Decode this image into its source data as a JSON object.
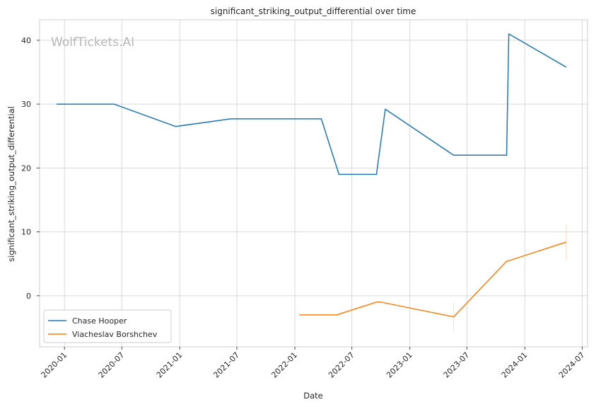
{
  "chart_data": {
    "type": "line",
    "title": "significant_striking_output_differential over time",
    "xlabel": "Date",
    "ylabel": "significant_striking_output_differential",
    "watermark": "WolfTickets.AI",
    "grid": true,
    "legend_position": "lower-left",
    "x_ticks": [
      "2020-01",
      "2020-07",
      "2021-01",
      "2021-07",
      "2022-01",
      "2022-07",
      "2023-01",
      "2023-07",
      "2024-01",
      "2024-07"
    ],
    "y_ticks": [
      0,
      10,
      20,
      30,
      40
    ],
    "xlim": [
      "2019-10-14",
      "2024-07-18"
    ],
    "ylim": [
      -8,
      43.2
    ],
    "series": [
      {
        "name": "Chase Hooper",
        "color": "#1f77b4",
        "points": [
          {
            "x": "2019-12-07",
            "y": 30.0
          },
          {
            "x": "2020-06-06",
            "y": 30.0
          },
          {
            "x": "2020-12-19",
            "y": 26.5
          },
          {
            "x": "2021-06-12",
            "y": 27.7
          },
          {
            "x": "2022-03-26",
            "y": 27.7
          },
          {
            "x": "2022-05-21",
            "y": 19.0
          },
          {
            "x": "2022-09-17",
            "y": 19.0
          },
          {
            "x": "2022-10-15",
            "y": 29.2
          },
          {
            "x": "2023-05-20",
            "y": 22.0
          },
          {
            "x": "2023-11-04",
            "y": 22.0
          },
          {
            "x": "2023-11-11",
            "y": 41.0
          },
          {
            "x": "2024-05-11",
            "y": 35.8
          }
        ]
      },
      {
        "name": "Viacheslav Borshchev",
        "color": "#ff7f0e",
        "points": [
          {
            "x": "2022-01-15",
            "y": -3.0
          },
          {
            "x": "2022-05-14",
            "y": -3.0
          },
          {
            "x": "2022-09-17",
            "y": -1.0
          },
          {
            "x": "2022-10-01",
            "y": -1.0
          },
          {
            "x": "2023-05-20",
            "y": -3.3
          },
          {
            "x": "2023-11-04",
            "y": 5.4
          },
          {
            "x": "2023-11-18",
            "y": 5.6
          },
          {
            "x": "2024-05-11",
            "y": 8.4
          }
        ],
        "error_bars": [
          {
            "x": "2023-05-20",
            "low": -5.7,
            "high": -1.0
          },
          {
            "x": "2024-05-11",
            "low": 5.6,
            "high": 11.2
          }
        ]
      }
    ]
  }
}
